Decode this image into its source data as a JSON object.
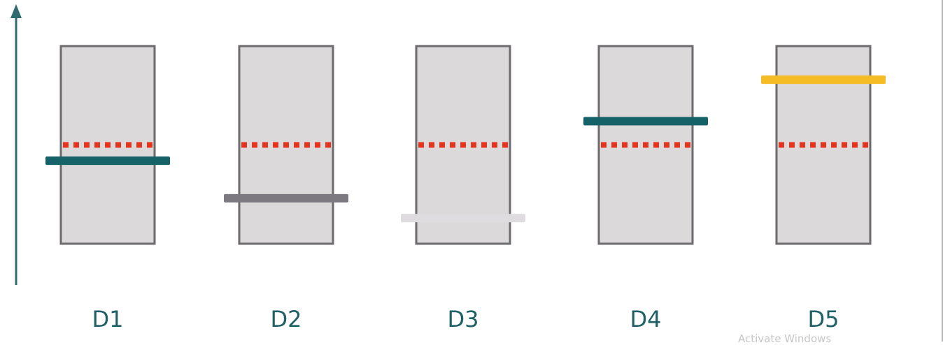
{
  "diagram": {
    "reference_level": 0.5,
    "colors": {
      "arrow": "#2f6b6f",
      "column_fill": "#dbd9da",
      "column_stroke": "#6d6b6e",
      "reference_line": "#e5331f",
      "label": "#1f5f66"
    },
    "columns": [
      {
        "label": "D1",
        "level": 0.42,
        "bar_color": "#166269"
      },
      {
        "label": "D2",
        "level": 0.23,
        "bar_color": "#7c7a80"
      },
      {
        "label": "D3",
        "level": 0.13,
        "bar_color": "#dedcde"
      },
      {
        "label": "D4",
        "level": 0.62,
        "bar_color": "#166269"
      },
      {
        "label": "D5",
        "level": 0.83,
        "bar_color": "#f5bc26"
      }
    ]
  },
  "watermark": {
    "text": "Activate Windows"
  }
}
